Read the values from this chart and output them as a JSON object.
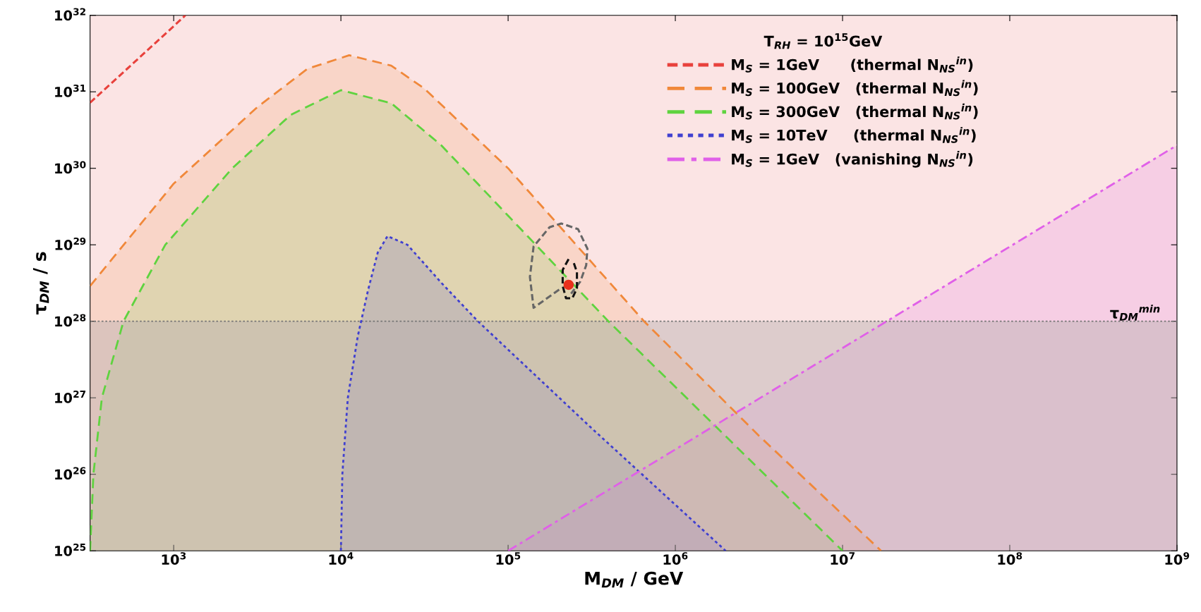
{
  "chart_data": {
    "type": "area",
    "xlabel": "M$_{DM}$ / GeV",
    "ylabel": "τ$_{DM}$ / s",
    "legend_title": "T$_{RH}$ = 10$^{15}$GeV",
    "log": "xy",
    "grid": false,
    "legend": "top right",
    "xlim": [
      316.2,
      1000000000.0
    ],
    "ylim": [
      1e+25,
      1e+32
    ],
    "xticks": [
      {
        "value": 1000,
        "label": "10$^{3}$"
      },
      {
        "value": 10000,
        "label": "10$^{4}$"
      },
      {
        "value": 100000,
        "label": "10$^{5}$"
      },
      {
        "value": 1000000,
        "label": "10$^{6}$"
      },
      {
        "value": 10000000,
        "label": "10$^{7}$"
      },
      {
        "value": 100000000,
        "label": "10$^{8}$"
      },
      {
        "value": 1000000000,
        "label": "10$^{9}$"
      }
    ],
    "yticks": [
      {
        "value": 1e+25,
        "label": "10$^{25}$"
      },
      {
        "value": 1e+26,
        "label": "10$^{26}$"
      },
      {
        "value": 1e+27,
        "label": "10$^{27}$"
      },
      {
        "value": 1e+28,
        "label": "10$^{28}$"
      },
      {
        "value": 1e+29,
        "label": "10$^{29}$"
      },
      {
        "value": 1e+30,
        "label": "10$^{30}$"
      },
      {
        "value": 1e+31,
        "label": "10$^{31}$"
      },
      {
        "value": 1e+32,
        "label": "10$^{32}$"
      }
    ],
    "bands": [
      {
        "axis": "y",
        "from": 1e+25,
        "to": 1e+32,
        "color": "#fbe4e4"
      },
      {
        "axis": "y",
        "from": 1e+25,
        "to": 1e+28,
        "color": "#b8b0b0"
      }
    ],
    "ref_lines": [
      {
        "axis": "y",
        "value": 1e+28,
        "label": "τ$_{DM}$$^{min}$",
        "color": "#777777",
        "line_style": "dotted"
      }
    ],
    "series": [
      {
        "name": "M$_{S}$ = 1GeV      (thermal N$_{NS}$$^{in}$)",
        "type": "line",
        "color": "#e8413c",
        "line_style": "dashed",
        "x": [
          316.2,
          1000,
          1175
        ],
        "values": [
          7.2e+30,
          7.2e+31,
          1e+32
        ]
      },
      {
        "name": "M$_{S}$ = 100GeV   (thermal N$_{NS}$$^{in}$)",
        "color": "#f0883a",
        "line_style": "dashed",
        "x": [
          316.2,
          1000,
          3162,
          6310,
          11200,
          20000,
          31600,
          100000,
          650000,
          3160000,
          17000000
        ],
        "values": [
          2.9e+28,
          6.3e+29,
          6.3e+30,
          2e+31,
          3e+31,
          2.2e+31,
          1.1e+31,
          1e+30,
          1e+28,
          3.2e+26,
          1e+25
        ]
      },
      {
        "name": "M$_{S}$ = 300GeV   (thermal N$_{NS}$$^{in}$)",
        "color": "#5fd33f",
        "line_style": "dashed",
        "x": [
          316.2,
          331,
          372,
          501,
          891,
          2239,
          5012,
          10000,
          20000,
          39800,
          100000,
          398000,
          10000000
        ],
        "values": [
          1e+25,
          1e+26,
          1e+27,
          1e+28,
          1e+29,
          1e+30,
          5e+30,
          1.05e+31,
          7.1e+30,
          2e+30,
          2.4e+29,
          1e+28,
          1e+25
        ]
      },
      {
        "name": "M$_{S}$ = 10TeV     (thermal N$_{NS}$$^{in}$)",
        "color": "#4040d0",
        "line_style": "dotted",
        "x": [
          10000,
          10200,
          11000,
          12600,
          14500,
          16600,
          19000,
          25000,
          39800,
          66000,
          316000,
          2000000
        ],
        "values": [
          1e+25,
          1e+26,
          1e+27,
          6.3e+27,
          2.5e+28,
          7.9e+28,
          1.3e+29,
          1e+29,
          3.2e+28,
          1e+28,
          4e+26,
          1e+25
        ]
      },
      {
        "name": "M$_{S}$ = 1GeV   (vanishing N$_{NS}$$^{in}$)",
        "color": "#e060e8",
        "line_style": "dashdot",
        "x": [
          100000,
          1000000000
        ],
        "values": [
          1e+25,
          2e+30
        ]
      },
      {
        "type": "line",
        "color": "#666666",
        "line_style": "dashed",
        "x": [
          202000,
          142000,
          135000,
          142000,
          177000,
          208000,
          262000,
          298000,
          293000,
          270000,
          238000
        ],
        "values": [
          2.6e+28,
          1.5e+28,
          3.8e+28,
          9.5e+28,
          1.7e+29,
          1.9e+29,
          1.6e+29,
          8.9e+28,
          5.4e+28,
          3.3e+28,
          2.3e+28
        ]
      },
      {
        "type": "line",
        "color": "#111111",
        "line_style": "dashed",
        "x": [
          230000,
          212000,
          212000,
          222000,
          242000,
          258000,
          258000,
          245000
        ],
        "values": [
          6.5e+28,
          4.7e+28,
          2.9e+28,
          2e+28,
          2e+28,
          2.7e+28,
          4.4e+28,
          6.1e+28
        ]
      },
      {
        "type": "scatter",
        "color": "#e8301c",
        "marker": "circle",
        "x": [
          230000
        ],
        "values": [
          3e+28
        ]
      }
    ]
  }
}
